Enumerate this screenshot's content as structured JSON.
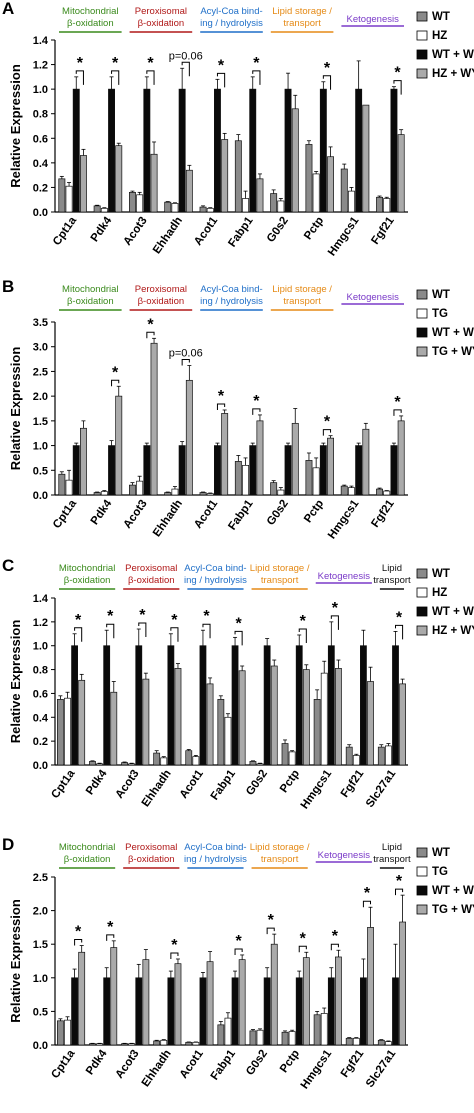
{
  "colors": {
    "WT": "#8a8a8a",
    "HZ": "#ffffff",
    "TG": "#ffffff",
    "WT + WY": "#0a0a0a",
    "HZ + WY": "#aaaaaa",
    "TG + WY": "#aaaaaa",
    "stroke": "#111111",
    "categories": {
      "Mitochondrial": "#3a8a1c",
      "Peroxisomal": "#b01818",
      "AcylCoa": "#1f6fc8",
      "Lipid storage": "#e58a16",
      "Ketogenesis": "#7a3ac8",
      "Lipid transport": "#111111"
    }
  },
  "chart_data": [
    {
      "panel": "A",
      "type": "bar",
      "ylabel": "Relative Expression",
      "ylim": [
        0,
        1.4
      ],
      "yticks": [
        "0.0",
        "0.2",
        "0.4",
        "0.6",
        "0.8",
        "1.0",
        "1.2",
        "1.4"
      ],
      "categories": [
        "Cpt1a",
        "Pdk4",
        "Acot3",
        "Ehhadh",
        "Acot1",
        "Fabp1",
        "G0s2",
        "Pctp",
        "Hmgcs1",
        "Fgf21"
      ],
      "category_groups": [
        {
          "label": [
            "Mitochondrial",
            "β-oxidation"
          ],
          "color_key": "Mitochondrial",
          "genes": 2
        },
        {
          "label": [
            "Peroxisomal",
            "β-oxidation"
          ],
          "color_key": "Peroxisomal",
          "genes": 2
        },
        {
          "label": [
            "Acyl-Coa bind-",
            "ing / hydrolysis"
          ],
          "color_key": "AcylCoa",
          "genes": 2
        },
        {
          "label": [
            "Lipid storage /",
            "transport"
          ],
          "color_key": "Lipid storage",
          "genes": 2
        },
        {
          "label": [
            "Ketogenesis"
          ],
          "color_key": "Ketogenesis",
          "genes": 2
        }
      ],
      "legend": [
        "WT",
        "HZ",
        "WT + WY",
        "HZ + WY"
      ],
      "series": [
        {
          "name": "WT",
          "values": [
            0.27,
            0.05,
            0.16,
            0.08,
            0.04,
            0.58,
            0.15,
            0.55,
            0.35,
            0.12
          ],
          "errors": [
            0.02,
            0.005,
            0.01,
            0.005,
            0.01,
            0.05,
            0.03,
            0.03,
            0.04,
            0.01
          ]
        },
        {
          "name": "HZ",
          "values": [
            0.21,
            0.03,
            0.14,
            0.07,
            0.03,
            0.11,
            0.09,
            0.31,
            0.17,
            0.11
          ],
          "errors": [
            0.03,
            0.005,
            0.02,
            0.005,
            0.005,
            0.06,
            0.02,
            0.02,
            0.03,
            0.01
          ]
        },
        {
          "name": "WT + WY",
          "values": [
            1.0,
            1.0,
            1.0,
            1.0,
            1.0,
            1.0,
            1.0,
            1.0,
            1.0,
            1.0
          ],
          "errors": [
            0.1,
            0.1,
            0.1,
            0.17,
            0.08,
            0.1,
            0.13,
            0.06,
            0.23,
            0.02
          ]
        },
        {
          "name": "HZ + WY",
          "values": [
            0.46,
            0.54,
            0.47,
            0.34,
            0.59,
            0.27,
            0.84,
            0.45,
            0.87,
            0.63
          ],
          "errors": [
            0.05,
            0.02,
            0.1,
            0.04,
            0.05,
            0.04,
            0.11,
            0.08,
            0.0,
            0.04
          ]
        }
      ],
      "significance": [
        {
          "index": 0,
          "text": "*"
        },
        {
          "index": 1,
          "text": "*"
        },
        {
          "index": 2,
          "text": "*"
        },
        {
          "index": 3,
          "text": "p=0.06"
        },
        {
          "index": 4,
          "text": "*"
        },
        {
          "index": 5,
          "text": "*"
        },
        {
          "index": 7,
          "text": "*"
        },
        {
          "index": 9,
          "text": "*"
        }
      ]
    },
    {
      "panel": "B",
      "type": "bar",
      "ylabel": "Relative Expression",
      "ylim": [
        0,
        3.5
      ],
      "yticks": [
        "0.0",
        "0.5",
        "1.0",
        "1.5",
        "2.0",
        "2.5",
        "3.0",
        "3.5"
      ],
      "categories": [
        "Cpt1a",
        "Pdk4",
        "Acot3",
        "Ehhadh",
        "Acot1",
        "Fabp1",
        "G0s2",
        "Pctp",
        "Hmgcs1",
        "Fgf21"
      ],
      "category_groups": [
        {
          "label": [
            "Mitochondrial",
            "β-oxidation"
          ],
          "color_key": "Mitochondrial",
          "genes": 2
        },
        {
          "label": [
            "Peroxisomal",
            "β-oxidation"
          ],
          "color_key": "Peroxisomal",
          "genes": 2
        },
        {
          "label": [
            "Acyl-Coa bind-",
            "ing / hydrolysis"
          ],
          "color_key": "AcylCoa",
          "genes": 2
        },
        {
          "label": [
            "Lipid storage /",
            "transport"
          ],
          "color_key": "Lipid storage",
          "genes": 2
        },
        {
          "label": [
            "Ketogenesis"
          ],
          "color_key": "Ketogenesis",
          "genes": 2
        }
      ],
      "legend": [
        "WT",
        "TG",
        "WT + WY",
        "TG + WY"
      ],
      "series": [
        {
          "name": "WT",
          "values": [
            0.42,
            0.05,
            0.2,
            0.05,
            0.05,
            0.68,
            0.25,
            0.7,
            0.18,
            0.12
          ],
          "errors": [
            0.05,
            0.01,
            0.05,
            0.01,
            0.01,
            0.12,
            0.04,
            0.15,
            0.02,
            0.02
          ]
        },
        {
          "name": "TG",
          "values": [
            0.3,
            0.07,
            0.28,
            0.12,
            0.03,
            0.6,
            0.1,
            0.55,
            0.15,
            0.08
          ],
          "errors": [
            0.2,
            0.02,
            0.1,
            0.05,
            0.01,
            0.15,
            0.05,
            0.2,
            0.03,
            0.01
          ]
        },
        {
          "name": "WT + WY",
          "values": [
            1.0,
            1.0,
            1.0,
            1.0,
            1.0,
            1.0,
            1.0,
            1.0,
            1.0,
            1.0
          ],
          "errors": [
            0.05,
            0.1,
            0.05,
            0.08,
            0.05,
            0.05,
            0.05,
            0.05,
            0.05,
            0.05
          ]
        },
        {
          "name": "TG + WY",
          "values": [
            1.35,
            2.0,
            3.07,
            2.32,
            1.65,
            1.5,
            1.45,
            1.15,
            1.33,
            1.5
          ]
        },
        {
          "name": "TG + WY errors",
          "values": [
            0.15,
            0.2,
            0.1,
            0.3,
            0.07,
            0.12,
            0.3,
            0.05,
            0.12,
            0.1
          ]
        }
      ],
      "significance": [
        {
          "index": 1,
          "text": "*"
        },
        {
          "index": 2,
          "text": "*"
        },
        {
          "index": 3,
          "text": "p=0.06"
        },
        {
          "index": 4,
          "text": "*"
        },
        {
          "index": 5,
          "text": "*"
        },
        {
          "index": 7,
          "text": "*"
        },
        {
          "index": 9,
          "text": "*"
        }
      ]
    },
    {
      "panel": "C",
      "type": "bar",
      "ylabel": "Relative Expression",
      "ylim": [
        0,
        1.4
      ],
      "yticks": [
        "0.0",
        "0.2",
        "0.4",
        "0.6",
        "0.8",
        "1.0",
        "1.2",
        "1.4"
      ],
      "categories": [
        "Cpt1a",
        "Pdk4",
        "Acot3",
        "Ehhadh",
        "Acot1",
        "Fabp1",
        "G0s2",
        "Pctp",
        "Hmgcs1",
        "Fgf21",
        "Slc27a1"
      ],
      "category_groups": [
        {
          "label": [
            "Mitochondrial",
            "β-oxidation"
          ],
          "color_key": "Mitochondrial",
          "genes": 2
        },
        {
          "label": [
            "Peroxisomal",
            "β-oxidation"
          ],
          "color_key": "Peroxisomal",
          "genes": 2
        },
        {
          "label": [
            "Acyl-Coa bind-",
            "ing / hydrolysis"
          ],
          "color_key": "AcylCoa",
          "genes": 2
        },
        {
          "label": [
            "Lipid storage /",
            "transport"
          ],
          "color_key": "Lipid storage",
          "genes": 2
        },
        {
          "label": [
            "Ketogenesis"
          ],
          "color_key": "Ketogenesis",
          "genes": 2
        },
        {
          "label": [
            "Lipid",
            "transport"
          ],
          "color_key": "Lipid transport",
          "genes": 1
        }
      ],
      "legend": [
        "WT",
        "HZ",
        "WT + WY",
        "HZ + WY"
      ],
      "series": [
        {
          "name": "WT",
          "values": [
            0.55,
            0.03,
            0.02,
            0.1,
            0.12,
            0.55,
            0.03,
            0.18,
            0.55,
            0.15,
            0.15
          ],
          "errors": [
            0.03,
            0.005,
            0.005,
            0.02,
            0.01,
            0.03,
            0.005,
            0.03,
            0.08,
            0.02,
            0.02
          ]
        },
        {
          "name": "HZ",
          "values": [
            0.56,
            0.01,
            0.01,
            0.06,
            0.07,
            0.4,
            0.01,
            0.11,
            0.77,
            0.08,
            0.16
          ],
          "errors": [
            0.05,
            0.005,
            0.005,
            0.01,
            0.01,
            0.03,
            0.005,
            0.01,
            0.1,
            0.01,
            0.02
          ]
        },
        {
          "name": "WT + WY",
          "values": [
            1.0,
            1.0,
            1.0,
            1.0,
            1.0,
            1.0,
            1.0,
            1.0,
            1.0,
            1.0,
            1.0
          ],
          "errors": [
            0.1,
            0.13,
            0.14,
            0.1,
            0.13,
            0.07,
            0.06,
            0.09,
            0.2,
            0.13,
            0.12
          ]
        },
        {
          "name": "HZ + WY",
          "values": [
            0.71,
            0.61,
            0.72,
            0.81,
            0.68,
            0.79,
            0.83,
            0.8,
            0.81,
            0.7,
            0.68
          ],
          "errors": [
            0.05,
            0.09,
            0.05,
            0.04,
            0.05,
            0.04,
            0.05,
            0.04,
            0.07,
            0.12,
            0.04
          ]
        }
      ],
      "significance": [
        {
          "index": 0,
          "text": "*"
        },
        {
          "index": 1,
          "text": "*"
        },
        {
          "index": 2,
          "text": "*"
        },
        {
          "index": 3,
          "text": "*"
        },
        {
          "index": 4,
          "text": "*"
        },
        {
          "index": 5,
          "text": "*"
        },
        {
          "index": 7,
          "text": "*"
        },
        {
          "index": 8,
          "text": "*"
        },
        {
          "index": 10,
          "text": "*"
        }
      ]
    },
    {
      "panel": "D",
      "type": "bar",
      "ylabel": "Relative Expression",
      "ylim": [
        0,
        2.5
      ],
      "yticks": [
        "0.0",
        "0.5",
        "1.0",
        "1.5",
        "2.0",
        "2.5"
      ],
      "categories": [
        "Cpt1a",
        "Pdk4",
        "Acot3",
        "Ehhadh",
        "Acot1",
        "Fabp1",
        "G0s2",
        "Pctp",
        "Hmgcs1",
        "Fgf21",
        "Slc27a1"
      ],
      "category_groups": [
        {
          "label": [
            "Mitochondrial",
            "β-oxidation"
          ],
          "color_key": "Mitochondrial",
          "genes": 2
        },
        {
          "label": [
            "Peroxisomal",
            "β-oxidation"
          ],
          "color_key": "Peroxisomal",
          "genes": 2
        },
        {
          "label": [
            "Acyl-Coa bind-",
            "ing / hydrolysis"
          ],
          "color_key": "AcylCoa",
          "genes": 2
        },
        {
          "label": [
            "Lipid storage /",
            "transport"
          ],
          "color_key": "Lipid storage",
          "genes": 2
        },
        {
          "label": [
            "Ketogenesis"
          ],
          "color_key": "Ketogenesis",
          "genes": 2
        },
        {
          "label": [
            "Lipid",
            "transport"
          ],
          "color_key": "Lipid transport",
          "genes": 1
        }
      ],
      "legend": [
        "WT",
        "TG",
        "WT + WY",
        "TG + WY"
      ],
      "series": [
        {
          "name": "WT",
          "values": [
            0.36,
            0.02,
            0.02,
            0.06,
            0.04,
            0.3,
            0.21,
            0.19,
            0.45,
            0.1,
            0.07
          ],
          "errors": [
            0.03,
            0.005,
            0.005,
            0.01,
            0.005,
            0.05,
            0.02,
            0.02,
            0.05,
            0.01,
            0.01
          ]
        },
        {
          "name": "TG",
          "values": [
            0.37,
            0.02,
            0.02,
            0.07,
            0.04,
            0.4,
            0.22,
            0.2,
            0.47,
            0.1,
            0.05
          ],
          "errors": [
            0.05,
            0.005,
            0.005,
            0.01,
            0.005,
            0.08,
            0.02,
            0.02,
            0.08,
            0.01,
            0.01
          ]
        },
        {
          "name": "WT + WY",
          "values": [
            1.0,
            1.0,
            1.0,
            1.0,
            1.0,
            1.0,
            1.0,
            1.0,
            1.0,
            1.0,
            1.0
          ],
          "errors": [
            0.13,
            0.15,
            0.2,
            0.1,
            0.08,
            0.1,
            0.15,
            0.1,
            0.15,
            0.28,
            0.5
          ]
        },
        {
          "name": "TG + WY",
          "values": [
            1.38,
            1.45,
            1.27,
            1.21,
            1.24,
            1.27,
            1.5,
            1.3,
            1.31,
            1.75,
            1.83
          ],
          "errors": [
            0.1,
            0.1,
            0.15,
            0.07,
            0.15,
            0.07,
            0.15,
            0.08,
            0.1,
            0.3,
            0.4
          ]
        }
      ],
      "significance": [
        {
          "index": 0,
          "text": "*"
        },
        {
          "index": 1,
          "text": "*"
        },
        {
          "index": 3,
          "text": "*"
        },
        {
          "index": 5,
          "text": "*"
        },
        {
          "index": 6,
          "text": "*"
        },
        {
          "index": 7,
          "text": "*"
        },
        {
          "index": 8,
          "text": "*"
        },
        {
          "index": 9,
          "text": "*"
        },
        {
          "index": 10,
          "text": "*"
        }
      ]
    }
  ]
}
